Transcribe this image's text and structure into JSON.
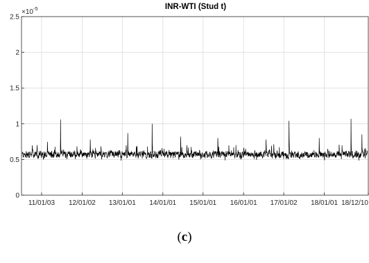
{
  "caption": {
    "open": "(",
    "letter": "c",
    "close": ")"
  },
  "chart_data": {
    "type": "line",
    "title": "INR-WTI (Stud t)",
    "xlabel": "",
    "ylabel": "",
    "y_exponent_label": "×10",
    "y_exponent_power": "-5",
    "ylim": [
      0,
      2.5e-05
    ],
    "y_ticks": [
      0,
      5e-06,
      1e-05,
      1.5e-05,
      2e-05,
      2.5e-05
    ],
    "y_tick_labels": [
      "0",
      "0.5",
      "1",
      "1.5",
      "2",
      "2.5"
    ],
    "x_tick_labels": [
      "11/01/03",
      "12/01/02",
      "13/01/01",
      "14/01/01",
      "15/01/01",
      "16/01/01",
      "17/01/02",
      "18/01/01",
      "18/12/10"
    ],
    "grid": true,
    "line_color": "#000000",
    "series": [
      {
        "base_level": 5.7e-06,
        "noise_amplitude": 7e-07,
        "values_sampled": [
          0.62,
          0.58,
          0.55,
          0.6,
          0.52,
          0.57,
          0.63,
          0.55,
          0.5,
          0.58,
          0.61,
          0.54,
          0.56,
          0.59,
          0.53,
          0.6,
          0.57,
          0.55,
          0.62,
          0.58
        ],
        "spikes": [
          {
            "date": "2011-06-20",
            "value": 1.06e-05
          },
          {
            "date": "2012-03-10",
            "value": 7.8e-06
          },
          {
            "date": "2013-02-05",
            "value": 8.7e-06
          },
          {
            "date": "2013-09-10",
            "value": 1e-05
          },
          {
            "date": "2014-05-20",
            "value": 8.2e-06
          },
          {
            "date": "2015-04-15",
            "value": 8e-06
          },
          {
            "date": "2016-06-15",
            "value": 7.8e-06
          },
          {
            "date": "2017-01-05",
            "value": 1.04e-05
          },
          {
            "date": "2017-10-01",
            "value": 8e-06
          },
          {
            "date": "2018-07-10",
            "value": 1.07e-05
          },
          {
            "date": "2018-10-15",
            "value": 8.5e-06
          }
        ]
      }
    ]
  }
}
